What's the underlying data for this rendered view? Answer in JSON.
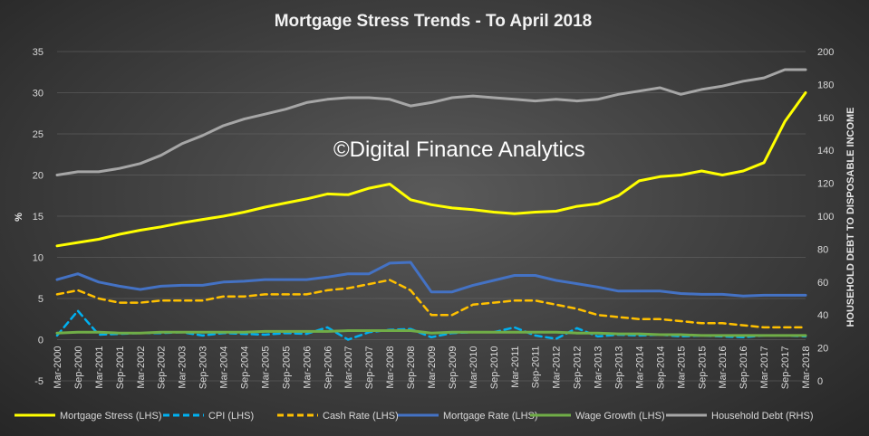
{
  "chart_data": {
    "type": "line",
    "title": "Mortgage Stress Trends - To April 2018",
    "watermark": "©Digital Finance Analytics",
    "ylabel": "%",
    "y2label": "HOUSEHOLD DEBT TO DISPOSABLE INCOME",
    "ylim": [
      -5,
      35
    ],
    "y2lim": [
      0,
      200
    ],
    "yticks": [
      "-5",
      "0",
      "5",
      "10",
      "15",
      "20",
      "25",
      "30",
      "35"
    ],
    "y2ticks": [
      "0",
      "20",
      "40",
      "60",
      "80",
      "100",
      "120",
      "140",
      "160",
      "180",
      "200"
    ],
    "xticks": [
      "Mar-2000",
      "Sep-2000",
      "Mar-2001",
      "Sep-2001",
      "Mar-2002",
      "Sep-2002",
      "Mar-2003",
      "Sep-2003",
      "Mar-2004",
      "Sep-2004",
      "Mar-2005",
      "Sep-2005",
      "Mar-2006",
      "Sep-2006",
      "Mar-2007",
      "Sep-2007",
      "Mar-2008",
      "Sep-2008",
      "Mar-2009",
      "Sep-2009",
      "Mar-2010",
      "Sep-2010",
      "Mar-2011",
      "Sep-2011",
      "Mar-2012",
      "Sep-2012",
      "Mar-2013",
      "Sep-2013",
      "Mar-2014",
      "Sep-2014",
      "Mar-2015",
      "Sep-2015",
      "Mar-2016",
      "Sep-2016",
      "Mar-2017",
      "Sep-2017",
      "Mar-2018"
    ],
    "grid": true,
    "legend_position": "bottom",
    "series": [
      {
        "name": "Mortgage Stress (LHS)",
        "color": "#ffff00",
        "style": "solid",
        "axis": "left",
        "values": [
          11.4,
          11.8,
          12.2,
          12.8,
          13.3,
          13.7,
          14.2,
          14.6,
          15.0,
          15.5,
          16.1,
          16.6,
          17.1,
          17.7,
          17.6,
          18.4,
          18.9,
          17.0,
          16.4,
          16.0,
          15.8,
          15.5,
          15.3,
          15.5,
          15.6,
          16.2,
          16.5,
          17.5,
          19.3,
          19.8,
          20.0,
          20.5,
          20.0,
          20.5,
          21.5,
          26.5,
          30.0
        ]
      },
      {
        "name": "CPI (LHS)",
        "color": "#00b0f0",
        "style": "dashed",
        "axis": "left",
        "values": [
          0.5,
          3.5,
          0.6,
          0.7,
          0.8,
          0.8,
          0.9,
          0.5,
          0.8,
          0.7,
          0.6,
          0.8,
          0.7,
          1.5,
          0.0,
          0.9,
          1.2,
          1.3,
          0.3,
          0.8,
          0.9,
          0.9,
          1.5,
          0.5,
          0.1,
          1.4,
          0.4,
          0.6,
          0.5,
          0.6,
          0.4,
          0.5,
          0.4,
          0.3,
          0.5,
          0.5,
          0.4
        ]
      },
      {
        "name": "Cash Rate (LHS)",
        "color": "#ffc000",
        "style": "dashed",
        "axis": "left",
        "values": [
          5.5,
          6.0,
          5.0,
          4.5,
          4.5,
          4.75,
          4.75,
          4.75,
          5.25,
          5.25,
          5.5,
          5.5,
          5.5,
          6.0,
          6.25,
          6.75,
          7.25,
          6.0,
          3.0,
          3.0,
          4.25,
          4.5,
          4.75,
          4.75,
          4.25,
          3.75,
          3.0,
          2.75,
          2.5,
          2.5,
          2.25,
          2.0,
          2.0,
          1.75,
          1.5,
          1.5,
          1.5
        ]
      },
      {
        "name": "Mortgage Rate (LHS)",
        "color": "#4472c4",
        "style": "solid",
        "axis": "left",
        "values": [
          7.3,
          8.0,
          7.0,
          6.5,
          6.1,
          6.5,
          6.6,
          6.6,
          7.0,
          7.1,
          7.3,
          7.3,
          7.3,
          7.6,
          8.0,
          8.0,
          9.3,
          9.4,
          5.8,
          5.8,
          6.6,
          7.2,
          7.8,
          7.8,
          7.2,
          6.8,
          6.4,
          5.9,
          5.9,
          5.9,
          5.6,
          5.5,
          5.5,
          5.3,
          5.4,
          5.4,
          5.4
        ]
      },
      {
        "name": "Wage Growth (LHS)",
        "color": "#70ad47",
        "style": "solid",
        "axis": "left",
        "values": [
          0.8,
          0.9,
          0.9,
          0.8,
          0.8,
          0.9,
          0.9,
          0.9,
          0.9,
          0.9,
          1.0,
          1.0,
          1.0,
          1.0,
          1.1,
          1.1,
          1.1,
          1.1,
          0.8,
          0.9,
          0.9,
          0.9,
          0.9,
          0.9,
          0.9,
          0.8,
          0.8,
          0.7,
          0.7,
          0.6,
          0.6,
          0.5,
          0.5,
          0.5,
          0.5,
          0.5,
          0.5
        ]
      },
      {
        "name": "Household Debt (RHS)",
        "color": "#a6a6a6",
        "style": "solid",
        "axis": "right",
        "values": [
          125,
          127,
          127,
          129,
          132,
          137,
          144,
          149,
          155,
          159,
          162,
          165,
          169,
          171,
          172,
          172,
          171,
          167,
          169,
          172,
          173,
          172,
          171,
          170,
          171,
          170,
          171,
          174,
          176,
          178,
          174,
          177,
          179,
          182,
          184,
          189,
          189
        ]
      }
    ]
  }
}
